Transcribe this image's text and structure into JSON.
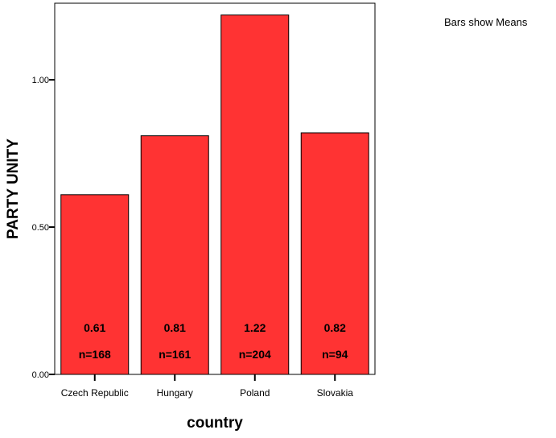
{
  "note": "Bars show Means",
  "chart_data": {
    "type": "bar",
    "categories": [
      "Czech Republic",
      "Hungary",
      "Poland",
      "Slovakia"
    ],
    "values": [
      0.61,
      0.81,
      1.22,
      0.82
    ],
    "value_labels": [
      "0.61",
      "0.81",
      "1.22",
      "0.82"
    ],
    "n_labels": [
      "n=168",
      "n=161",
      "n=204",
      "n=94"
    ],
    "xlabel": "country",
    "ylabel": "PARTY UNITY",
    "ylim": [
      0,
      1.26
    ],
    "yticks": [
      0.0,
      0.5,
      1.0
    ],
    "ytick_labels": [
      "0.00",
      "0.50",
      "1.00"
    ],
    "bar_color": "#ff3333",
    "grid": false,
    "legend": "none"
  }
}
